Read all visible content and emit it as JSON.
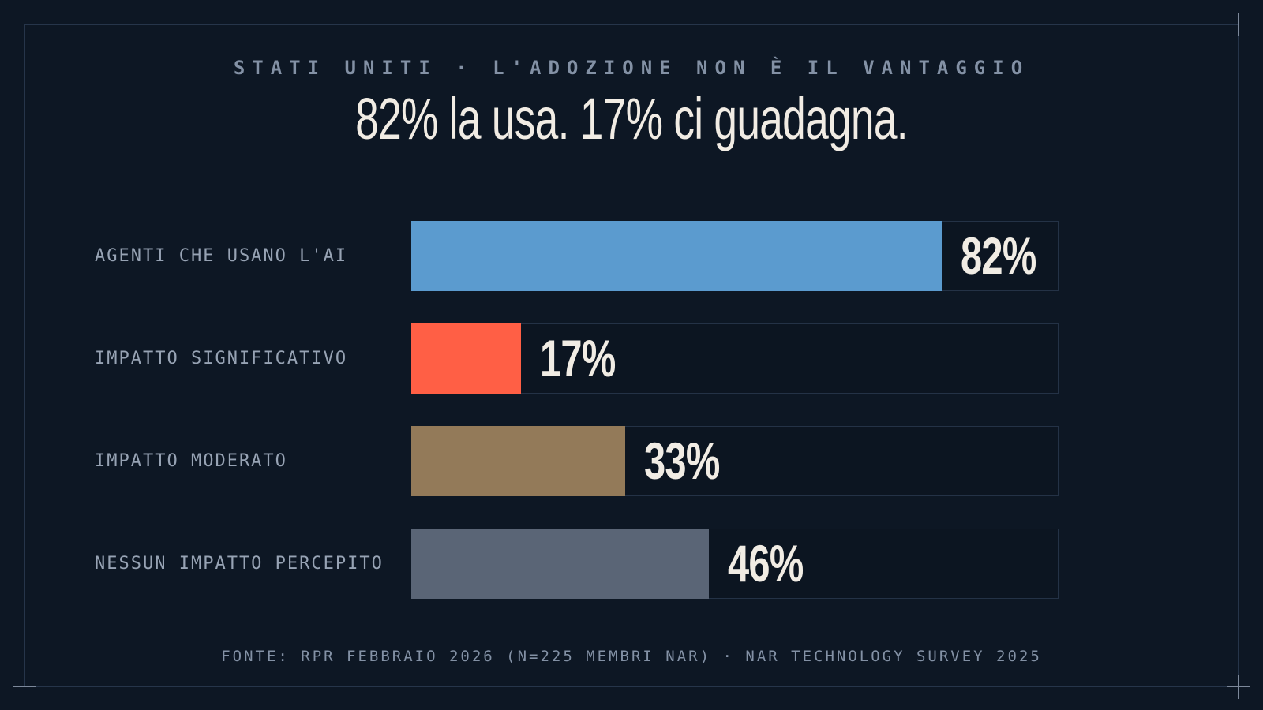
{
  "kicker": "STATI UNITI · L'ADOZIONE NON È IL VANTAGGIO",
  "headline": "82% la usa. 17% ci guadagna.",
  "source": "FONTE: RPR FEBBRAIO 2026 (N=225 MEMBRI NAR) · NAR TECHNOLOGY SURVEY 2025",
  "colors": {
    "background": "#0d1724",
    "text": "#f1ece4",
    "muted": "#8391a5"
  },
  "chart_data": {
    "type": "bar",
    "orientation": "horizontal",
    "title": "82% la usa. 17% ci guadagna.",
    "subtitle": "STATI UNITI · L'ADOZIONE NON È IL VANTAGGIO",
    "categories": [
      "AGENTI CHE USANO L'AI",
      "IMPATTO SIGNIFICATIVO",
      "IMPATTO MODERATO",
      "NESSUN IMPATTO PERCEPITO"
    ],
    "values": [
      82,
      17,
      33,
      46
    ],
    "value_labels": [
      "82%",
      "17%",
      "33%",
      "46%"
    ],
    "bar_colors": [
      "#5b9bcf",
      "#ff5f45",
      "#937a59",
      "#5a6576"
    ],
    "xlim": [
      0,
      100
    ],
    "grid": false,
    "legend": false
  }
}
